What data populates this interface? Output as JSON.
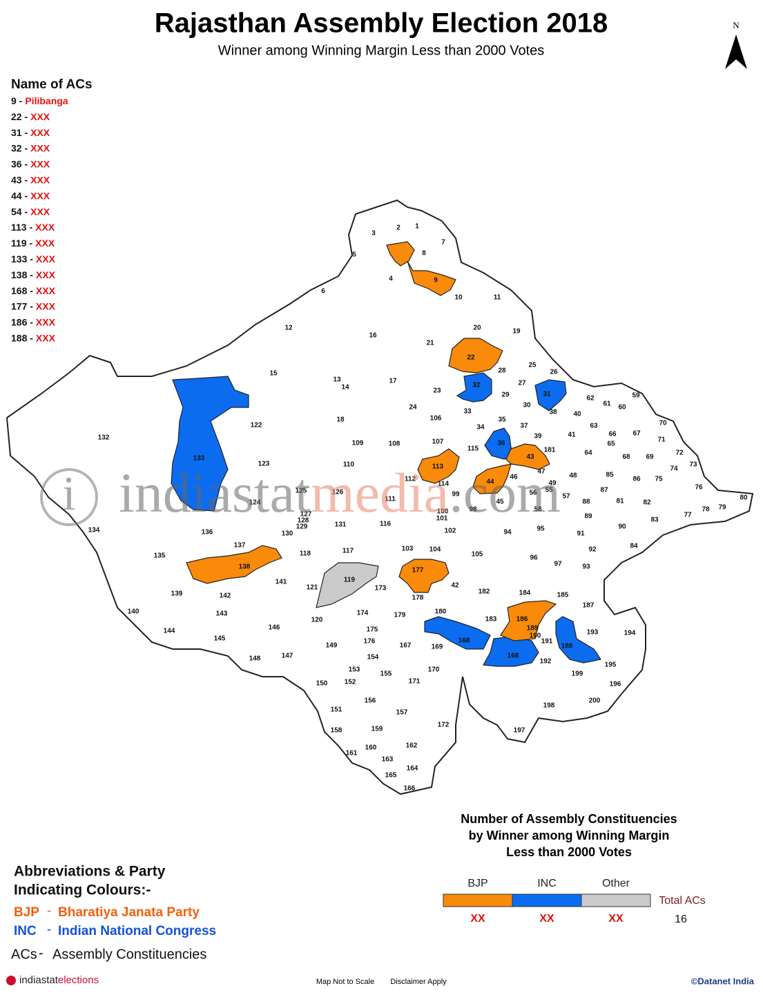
{
  "header": {
    "title": "Rajasthan Assembly Election 2018",
    "subtitle": "Winner among Winning Margin Less than 2000 Votes",
    "north": "N"
  },
  "ac_list": {
    "title": "Name of ACs",
    "items": [
      {
        "number": "9 -",
        "name": "Pilibanga"
      },
      {
        "number": "22 -",
        "name": "XXX"
      },
      {
        "number": "31 -",
        "name": "XXX"
      },
      {
        "number": "32 -",
        "name": "XXX"
      },
      {
        "number": "36 -",
        "name": "XXX"
      },
      {
        "number": "43 -",
        "name": "XXX"
      },
      {
        "number": "44 -",
        "name": "XXX"
      },
      {
        "number": "54 -",
        "name": "XXX"
      },
      {
        "number": "113 -",
        "name": "XXX"
      },
      {
        "number": "119 -",
        "name": "XXX"
      },
      {
        "number": "133 -",
        "name": "XXX"
      },
      {
        "number": "138 -",
        "name": "XXX"
      },
      {
        "number": "168 -",
        "name": "XXX"
      },
      {
        "number": "177 -",
        "name": "XXX"
      },
      {
        "number": "186 -",
        "name": "XXX"
      },
      {
        "number": "188 -",
        "name": "XXX"
      }
    ]
  },
  "map": {
    "watermark_logo": "i",
    "watermark_a": "indiastat",
    "watermark_b": "media",
    "watermark_c": ".com",
    "labels": [
      "1",
      "2",
      "3",
      "4",
      "5",
      "6",
      "7",
      "8",
      "9",
      "10",
      "11",
      "12",
      "13",
      "14",
      "15",
      "16",
      "17",
      "18",
      "19",
      "20",
      "21",
      "22",
      "23",
      "24",
      "25",
      "26",
      "27",
      "28",
      "29",
      "30",
      "31",
      "32",
      "33",
      "34",
      "35",
      "36",
      "37",
      "38",
      "39",
      "40",
      "41",
      "42",
      "43",
      "44",
      "45",
      "46",
      "47",
      "48",
      "49",
      "55",
      "56",
      "57",
      "58",
      "59",
      "60",
      "61",
      "62",
      "63",
      "64",
      "65",
      "66",
      "67",
      "68",
      "69",
      "70",
      "71",
      "72",
      "73",
      "74",
      "75",
      "76",
      "77",
      "78",
      "79",
      "80",
      "81",
      "82",
      "83",
      "84",
      "85",
      "86",
      "87",
      "88",
      "89",
      "90",
      "91",
      "92",
      "93",
      "94",
      "95",
      "96",
      "97",
      "98",
      "99",
      "100",
      "101",
      "102",
      "103",
      "104",
      "105",
      "106",
      "107",
      "108",
      "109",
      "110",
      "111",
      "112",
      "113",
      "114",
      "115",
      "116",
      "117",
      "118",
      "119",
      "120",
      "121",
      "122",
      "123",
      "124",
      "125",
      "126",
      "127",
      "128",
      "129",
      "130",
      "131",
      "132",
      "133",
      "134",
      "135",
      "136",
      "137",
      "138",
      "139",
      "140",
      "141",
      "142",
      "143",
      "144",
      "145",
      "146",
      "147",
      "148",
      "149",
      "150",
      "151",
      "152",
      "153",
      "154",
      "155",
      "156",
      "157",
      "158",
      "159",
      "160",
      "161",
      "162",
      "163",
      "164",
      "165",
      "166",
      "167",
      "168",
      "168",
      "169",
      "170",
      "171",
      "172",
      "173",
      "174",
      "175",
      "176",
      "177",
      "178",
      "179",
      "180",
      "181",
      "182",
      "183",
      "184",
      "185",
      "186",
      "187",
      "188",
      "189",
      "190",
      "191",
      "192",
      "193",
      "194",
      "195",
      "196",
      "197",
      "198",
      "199",
      "200"
    ]
  },
  "summary": {
    "title_lines": [
      "Number of Assembly Constituencies",
      "by Winner among Winning Margin",
      "Less than 2000 Votes"
    ],
    "parties": [
      {
        "name": "BJP",
        "color": "#f98a0a",
        "count": "XX"
      },
      {
        "name": "INC",
        "color": "#0b6cf0",
        "count": "XX"
      },
      {
        "name": "Other",
        "color": "#cbcbcb",
        "count": "XX"
      }
    ],
    "total_label": "Total ACs",
    "total": 16
  },
  "abbreviations": {
    "title_lines": [
      "Abbreviations & Party",
      "Indicating Colours:-"
    ],
    "items": [
      {
        "abbr": "BJP",
        "sep": "-",
        "full": "Bharatiya Janata Party"
      },
      {
        "abbr": "INC",
        "sep": "-",
        "full": "Indian National Congress"
      },
      {
        "abbr": "ACs",
        "sep": "-",
        "full": "Assembly Constituencies"
      }
    ]
  },
  "footer": {
    "brand_a": "indiastat",
    "brand_b": "elections",
    "note_scale": "Map Not to Scale",
    "note_disclaimer": "Disclaimer Apply",
    "copyright": "©Datanet India"
  }
}
